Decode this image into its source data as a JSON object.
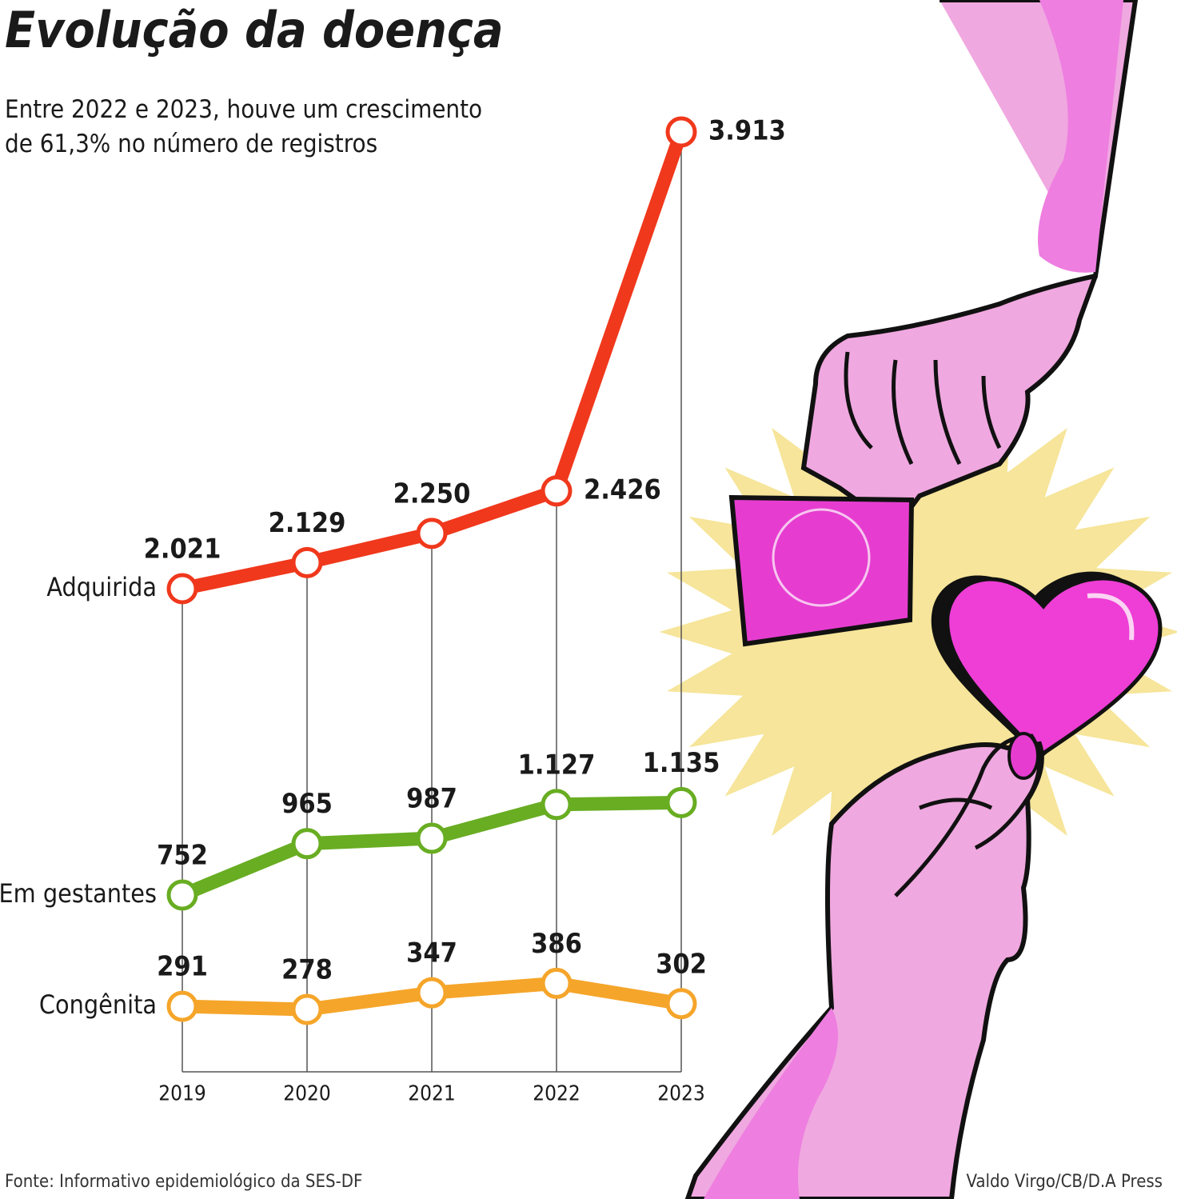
{
  "chart_data": {
    "type": "line",
    "title": "Evolução da doença",
    "subtitle": "Entre 2022 e 2023, houve um crescimento de 61,3% no número de registros",
    "categories": [
      "2019",
      "2020",
      "2021",
      "2022",
      "2023"
    ],
    "series": [
      {
        "name": "Adquirida",
        "color": "#f0381c",
        "values": [
          2021,
          2129,
          2250,
          2426,
          3913
        ],
        "value_labels": [
          "2.021",
          "2.129",
          "2.250",
          "2.426",
          "3.913"
        ]
      },
      {
        "name": "Em gestantes",
        "color": "#68ad22",
        "values": [
          752,
          965,
          987,
          1127,
          1135
        ],
        "value_labels": [
          "752",
          "965",
          "987",
          "1.127",
          "1.135"
        ]
      },
      {
        "name": "Congênita",
        "color": "#f5a52a",
        "values": [
          291,
          278,
          347,
          386,
          302
        ],
        "value_labels": [
          "291",
          "278",
          "347",
          "386",
          "302"
        ]
      }
    ],
    "source": "Fonte: Informativo epidemiológico da SES-DF",
    "credit": "Valdo Virgo/CB/D.A Press"
  }
}
